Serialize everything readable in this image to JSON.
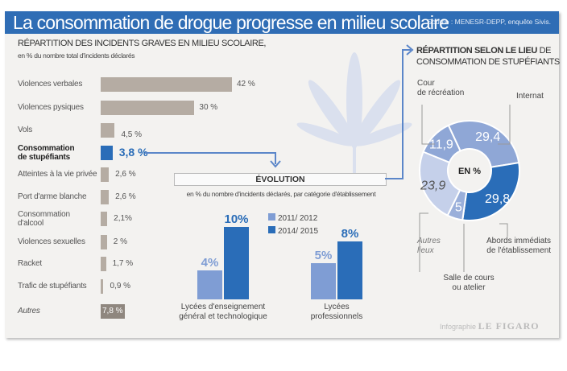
{
  "header": {
    "title": "La consommation de drogue progresse en milieu scolaire",
    "source": "Source : MENESR-DEPP, enquête Sivis."
  },
  "chart_data": [
    {
      "type": "bar",
      "orientation": "horizontal",
      "title": "RÉPARTITION DES INCIDENTS GRAVES EN MILIEU SCOLAIRE,",
      "subtitle": "en % du nombre  total d'incidents déclarés",
      "categories": [
        "Violences verbales",
        "Violences pysiques",
        "Vols",
        "Consommation de stupéfiants",
        "Atteintes à la vie privée",
        "Port d'arme blanche",
        "Consommation d'alcool",
        "Violences sexuelles",
        "Racket",
        "Trafic de stupéfiants",
        "Autres"
      ],
      "values": [
        42,
        30,
        4.5,
        3.8,
        2.6,
        2.6,
        2.1,
        2,
        1.7,
        0.9,
        7.8
      ],
      "value_labels": [
        "42 %",
        "30 %",
        "4,5 %",
        "3,8 %",
        "2,6 %",
        "2,6 %",
        "2,1%",
        "2 %",
        "1,7 %",
        "0,9 %",
        "7,8 %"
      ],
      "highlight": "Consommation de stupéfiants",
      "colors": {
        "bar": "#b5aca3",
        "highlight": "#2a6db8",
        "other": "#8f877f"
      }
    },
    {
      "type": "bar",
      "title": "ÉVOLUTION",
      "subtitle": "en % du nombre d'incidents déclarés, par catégorie d'établissement",
      "categories": [
        "Lycées d'enseignement général et technologique",
        "Lycées professionnels"
      ],
      "category_lines": [
        [
          "Lycées d'enseignement",
          "général et technologique"
        ],
        [
          "Lycées",
          "professionnels"
        ]
      ],
      "series": [
        {
          "name": "2011/ 2012",
          "values": [
            4,
            5
          ],
          "labels": [
            "4%",
            "5%"
          ],
          "color": "#7f9dd4"
        },
        {
          "name": "2014/ 2015",
          "values": [
            10,
            8
          ],
          "labels": [
            "10%",
            "8%"
          ],
          "color": "#2a6db8"
        }
      ]
    },
    {
      "type": "pie",
      "variant": "donut",
      "title_bold": "RÉPARTITION SELON LE LIEU",
      "title_rest": " DE",
      "title_line2": "CONSOMMATION DE STUPÉFIANTS",
      "center_label": "EN %",
      "slices": [
        {
          "label": "Internat",
          "value": 29.4,
          "text": "29,4",
          "color": "#8fa7d6"
        },
        {
          "label": "Abords immédiats de l'établissement",
          "value": 29.8,
          "text": "29,8",
          "color": "#2a6db8"
        },
        {
          "label": "Salle de cours ou atelier",
          "value": 5,
          "text": "5",
          "color": "#9aafda"
        },
        {
          "label": "Autres lieux",
          "value": 23.9,
          "text": "23,9",
          "color": "#c5d0ea"
        },
        {
          "label": "Cour de récréation",
          "value": 11.9,
          "text": "11,9",
          "color": "#8fa7d6"
        }
      ]
    }
  ],
  "labels": {
    "cour": [
      "Cour",
      "de récréation"
    ],
    "internat": "Internat",
    "abords": [
      "Abords immédiats",
      "de l'établissement"
    ],
    "salle": [
      "Salle de cours",
      "ou atelier"
    ],
    "autres": [
      "Autres",
      "lieux"
    ]
  },
  "credit": {
    "infographie": "Infographie",
    "brand": "LE FIGARO"
  }
}
